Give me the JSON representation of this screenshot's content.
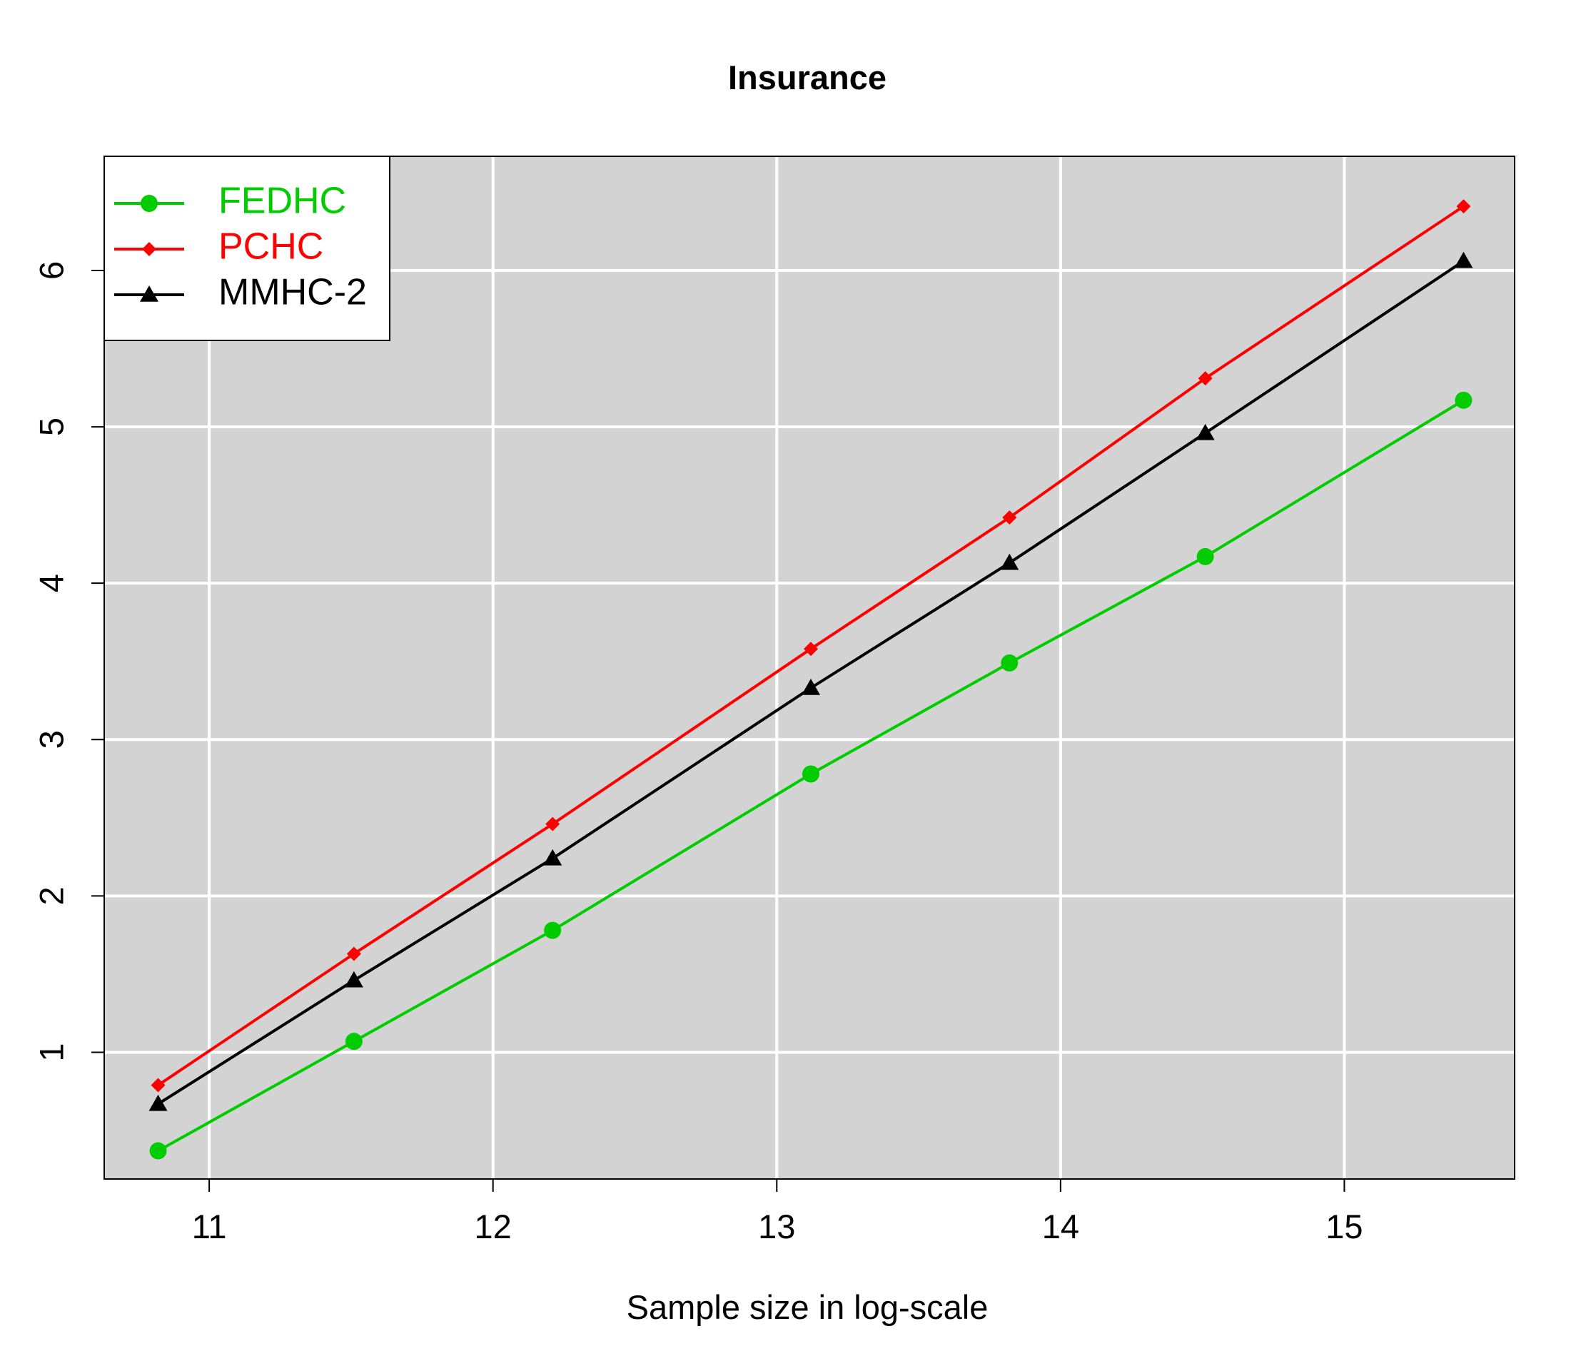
{
  "chart_data": {
    "type": "line",
    "title": "Insurance",
    "xlabel": "Sample size in log-scale",
    "ylabel": "",
    "xlim": [
      10.63,
      15.6
    ],
    "ylim": [
      0.19,
      6.73
    ],
    "x_ticks": [
      11,
      12,
      13,
      14,
      15
    ],
    "y_ticks": [
      1,
      2,
      3,
      4,
      5,
      6
    ],
    "grid": true,
    "background": "#d3d3d3",
    "legend_position": "top-left",
    "x": [
      10.82,
      11.51,
      12.21,
      13.12,
      13.82,
      14.51,
      15.42
    ],
    "series": [
      {
        "name": "FEDHC",
        "color": "#00cc00",
        "marker": "circle",
        "values": [
          0.37,
          1.07,
          1.78,
          2.78,
          3.49,
          4.17,
          5.17
        ]
      },
      {
        "name": "PCHC",
        "color": "#ff0000",
        "marker": "diamond",
        "values": [
          0.79,
          1.63,
          2.46,
          3.58,
          4.42,
          5.31,
          6.41
        ]
      },
      {
        "name": "MMHC-2",
        "color": "#000000",
        "marker": "triangle",
        "values": [
          0.67,
          1.46,
          2.24,
          3.33,
          4.13,
          4.96,
          6.06
        ]
      }
    ]
  }
}
